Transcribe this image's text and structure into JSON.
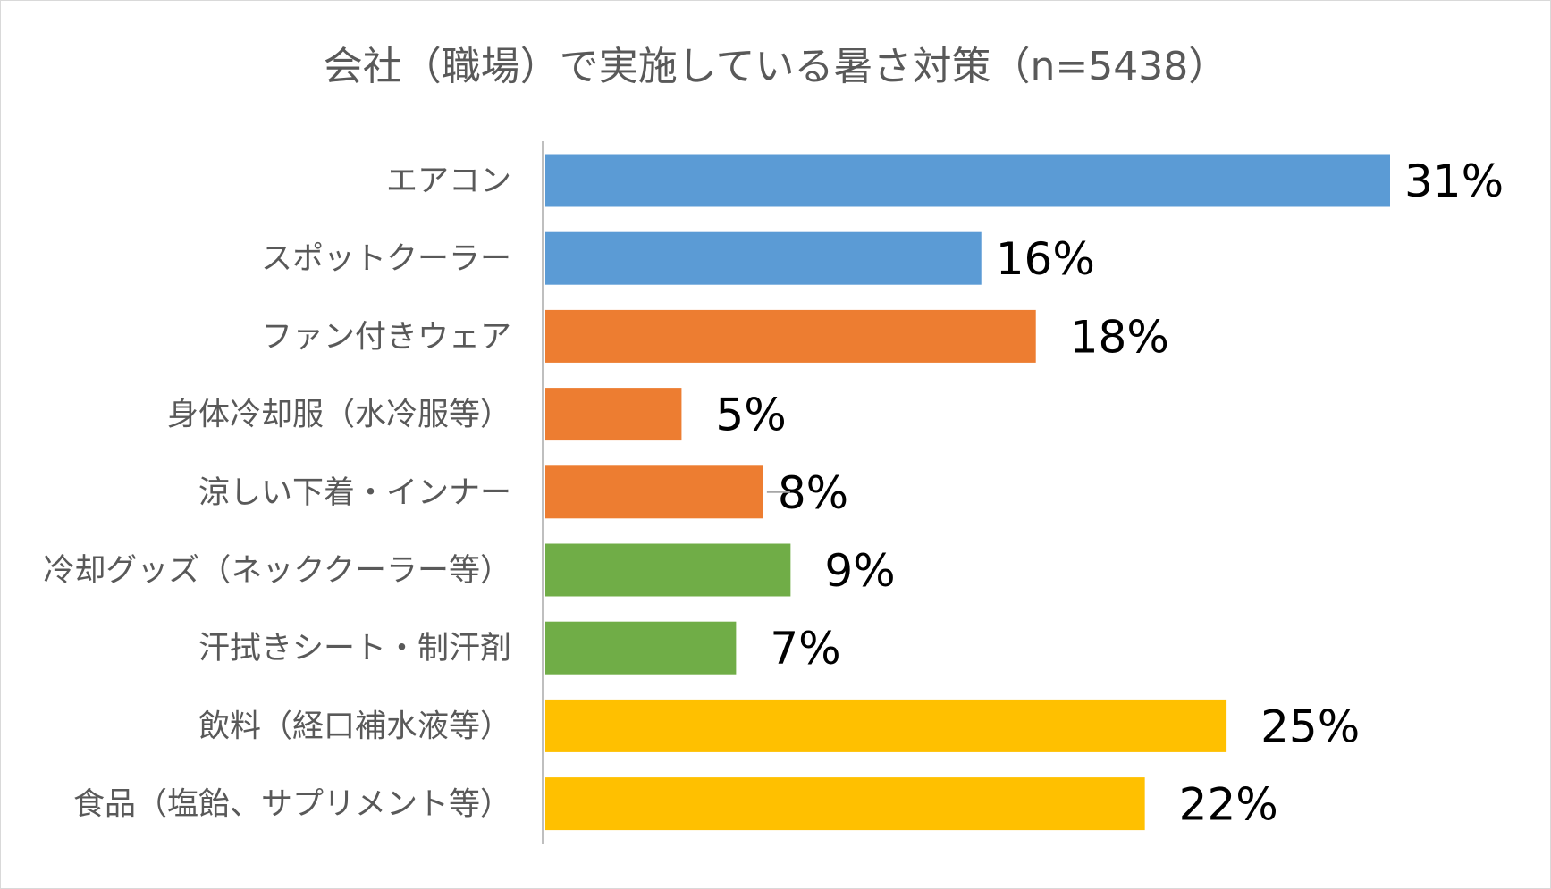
{
  "chart_data": {
    "type": "bar",
    "orientation": "horizontal",
    "title": "会社（職場）で実施している暑さ対策（n=5438）",
    "categories": [
      "エアコン",
      "スポットクーラー",
      "ファン付きウェア",
      "身体冷却服（水冷服等）",
      "涼しい下着・インナー",
      "冷却グッズ（ネッククーラー等）",
      "汗拭きシート・制汗剤",
      "飲料（経口補水液等）",
      "食品（塩飴、サプリメント等）"
    ],
    "values": [
      31,
      16,
      18,
      5,
      8,
      9,
      7,
      25,
      22
    ],
    "value_labels": [
      "31%",
      "16%",
      "18%",
      "5%",
      "8%",
      "9%",
      "7%",
      "25%",
      "22%"
    ],
    "bar_colors": [
      "#5B9BD5",
      "#5B9BD5",
      "#ED7D31",
      "#ED7D31",
      "#ED7D31",
      "#70AD47",
      "#70AD47",
      "#FFC000",
      "#FFC000"
    ],
    "xlim": [
      0,
      31
    ],
    "grid": false,
    "legend": "none",
    "axis_line_color": "#bfbfbf",
    "leader_line_color": "#a6a6a6"
  }
}
